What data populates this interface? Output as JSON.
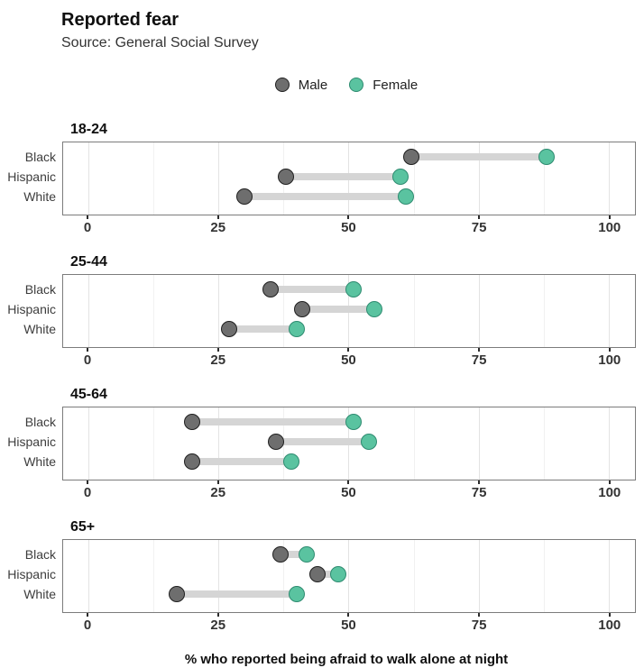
{
  "header": {
    "title": "Reported fear",
    "subtitle": "Source: General Social Survey"
  },
  "legend": {
    "items": [
      {
        "label": "Male",
        "color": "#6e6e6e",
        "border": "#1f1f1f"
      },
      {
        "label": "Female",
        "color": "#5ac3a0",
        "border": "#2e8b70"
      }
    ]
  },
  "caption": "% who reported being afraid to walk alone at night",
  "colors": {
    "male_fill": "#6e6e6e",
    "male_stroke": "#1f1f1f",
    "female_fill": "#5ac3a0",
    "female_stroke": "#2e8b70",
    "connector": "#d5d5d5",
    "panel_border": "#7c7c7c",
    "grid_major": "#e3e3e3",
    "grid_minor": "#f1f1f1",
    "tick": "#2b2b2b",
    "tick_label": "#333333"
  },
  "chart_data": {
    "type": "dumbbell",
    "title": "Reported fear",
    "subtitle": "Source: General Social Survey",
    "xlabel": "% who reported being afraid to walk alone at night",
    "legend_position": "top-center",
    "grid": true,
    "xlim": [
      -4.85,
      105.05
    ],
    "x_ticks": [
      0,
      25,
      50,
      75,
      100
    ],
    "x_tick_labels": [
      "0",
      "25",
      "50",
      "75",
      "100"
    ],
    "x_minor_ticks": [
      12.5,
      37.5,
      62.5,
      87.5
    ],
    "categories": [
      "Black",
      "Hispanic",
      "White"
    ],
    "series_names": [
      "Male",
      "Female"
    ],
    "row_centers_pct": [
      20.5,
      47.5,
      74.5
    ],
    "facets": [
      {
        "label": "18-24",
        "rows": [
          {
            "category": "Black",
            "male": 62,
            "female": 88
          },
          {
            "category": "Hispanic",
            "male": 38,
            "female": 60
          },
          {
            "category": "White",
            "male": 30,
            "female": 61
          }
        ]
      },
      {
        "label": "25-44",
        "rows": [
          {
            "category": "Black",
            "male": 35,
            "female": 51
          },
          {
            "category": "Hispanic",
            "male": 41,
            "female": 55
          },
          {
            "category": "White",
            "male": 27,
            "female": 40
          }
        ]
      },
      {
        "label": "45-64",
        "rows": [
          {
            "category": "Black",
            "male": 20,
            "female": 51
          },
          {
            "category": "Hispanic",
            "male": 36,
            "female": 54
          },
          {
            "category": "White",
            "male": 20,
            "female": 39
          }
        ]
      },
      {
        "label": "65+",
        "rows": [
          {
            "category": "Black",
            "male": 37,
            "female": 42
          },
          {
            "category": "Hispanic",
            "male": 44,
            "female": 48
          },
          {
            "category": "White",
            "male": 17,
            "female": 40
          }
        ]
      }
    ]
  }
}
